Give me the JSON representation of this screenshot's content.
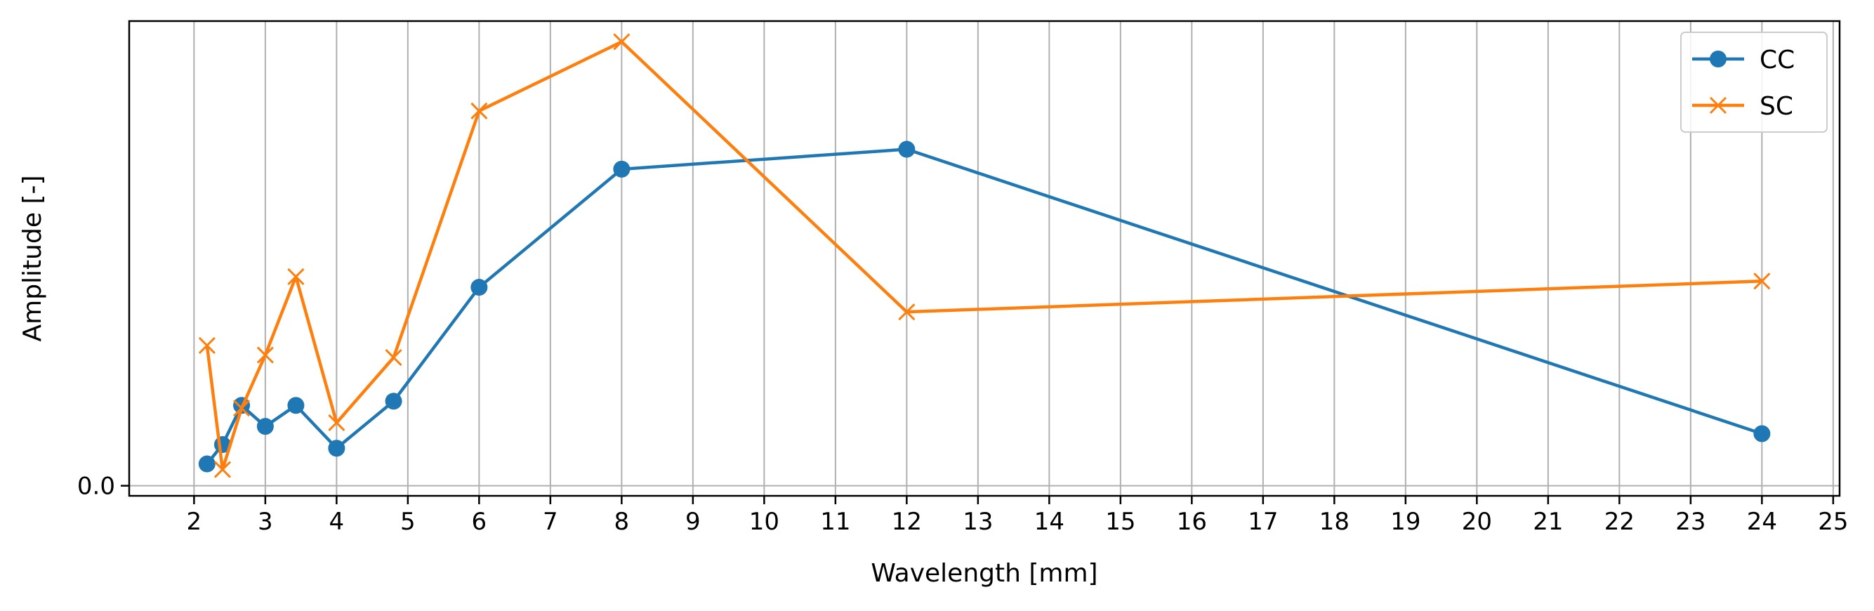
{
  "chart_data": {
    "type": "line",
    "title": "",
    "xlabel": "Wavelength [mm]",
    "ylabel": "Amplitude [-]",
    "xlim": [
      1.09,
      25.09
    ],
    "ylim": [
      -0.0036,
      0.166
    ],
    "xticks": [
      2,
      3,
      4,
      5,
      6,
      7,
      8,
      9,
      10,
      11,
      12,
      13,
      14,
      15,
      16,
      17,
      18,
      19,
      20,
      21,
      22,
      23,
      24,
      25
    ],
    "yticks": [
      0.0
    ],
    "ytick_labels": [
      "0.0"
    ],
    "grid": "x",
    "legend": "top-right",
    "series": [
      {
        "name": "CC",
        "color": "#1f77b4",
        "marker": "circle",
        "x": [
          2.182,
          2.4,
          2.667,
          3.0,
          3.429,
          4.0,
          4.8,
          6.0,
          8.0,
          12.0,
          24.0
        ],
        "y": [
          0.0078,
          0.0147,
          0.0287,
          0.0212,
          0.0287,
          0.0134,
          0.0302,
          0.0709,
          0.1131,
          0.1202,
          0.0186
        ]
      },
      {
        "name": "SC",
        "color": "#ff7f0e",
        "marker": "x",
        "x": [
          2.182,
          2.4,
          2.667,
          3.0,
          3.429,
          4.0,
          4.8,
          6.0,
          8.0,
          12.0,
          24.0
        ],
        "y": [
          0.0501,
          0.0058,
          0.0277,
          0.0467,
          0.0747,
          0.0225,
          0.0458,
          0.1339,
          0.1586,
          0.0621,
          0.0731
        ]
      }
    ]
  }
}
